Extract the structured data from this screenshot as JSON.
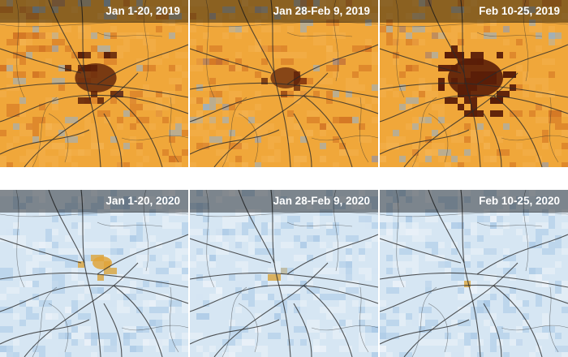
{
  "panels": [
    {
      "id": "p2019a",
      "title": "Jan 1-20, 2019",
      "palette": "orange",
      "hotspot": 0.7
    },
    {
      "id": "p2019b",
      "title": "Jan 28-Feb 9, 2019",
      "palette": "orange",
      "hotspot": 0.45
    },
    {
      "id": "p2019c",
      "title": "Feb 10-25, 2019",
      "palette": "orange",
      "hotspot": 1.0
    },
    {
      "id": "p2020a",
      "title": "Jan 1-20, 2020",
      "palette": "blue",
      "hotspot": 0.35
    },
    {
      "id": "p2020b",
      "title": "Jan 28-Feb 9, 2020",
      "palette": "blue",
      "hotspot": 0.12
    },
    {
      "id": "p2020c",
      "title": "Feb 10-25, 2020",
      "palette": "blue",
      "hotspot": 0.1
    }
  ],
  "colors": {
    "orange_base": "#f0a73a",
    "orange_dark": "#5a1e08",
    "orange_mid": "#c9671c",
    "blue_base": "#d6e6f3",
    "blue_mid": "#a9c9e6",
    "road": "#2b2b2b"
  }
}
